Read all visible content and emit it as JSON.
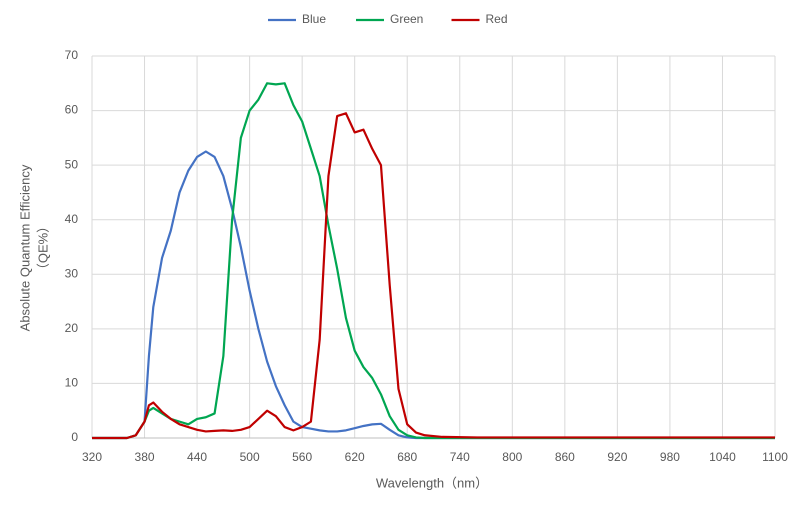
{
  "chart_data": {
    "type": "line",
    "xlabel": "Wavelength（nm）",
    "ylabel": [
      "Absolute Quantum Efficiency",
      "（QE%）"
    ],
    "x": [
      320,
      340,
      360,
      370,
      380,
      385,
      390,
      400,
      410,
      420,
      430,
      440,
      450,
      460,
      470,
      480,
      490,
      500,
      510,
      520,
      530,
      540,
      550,
      560,
      570,
      580,
      590,
      600,
      610,
      620,
      630,
      640,
      650,
      660,
      670,
      680,
      690,
      700,
      720,
      760,
      800,
      900,
      1000,
      1100
    ],
    "series": [
      {
        "name": "Blue",
        "color": "#4472c4",
        "values": [
          0,
          0,
          0,
          0.5,
          3,
          15,
          24,
          33,
          38,
          45,
          49,
          51.5,
          52.5,
          51.5,
          48,
          42,
          35,
          27,
          20,
          14,
          9.5,
          6,
          3,
          2,
          1.7,
          1.4,
          1.2,
          1.2,
          1.4,
          1.8,
          2.2,
          2.5,
          2.6,
          1.5,
          0.5,
          0.1,
          0,
          0,
          0,
          0,
          0,
          0,
          0,
          0
        ]
      },
      {
        "name": "Green",
        "color": "#00a651",
        "values": [
          0,
          0,
          0,
          0.5,
          3,
          5,
          5.5,
          4.5,
          3.5,
          3,
          2.5,
          3.5,
          3.8,
          4.5,
          15,
          40,
          55,
          60,
          62,
          65,
          64.8,
          65,
          61,
          58,
          53,
          48,
          39,
          31,
          22,
          16,
          13,
          11,
          8,
          4,
          1.5,
          0.5,
          0.1,
          0,
          0,
          0,
          0,
          0,
          0,
          0
        ]
      },
      {
        "name": "Red",
        "color": "#c00000",
        "values": [
          0,
          0,
          0,
          0.5,
          3,
          6,
          6.5,
          4.8,
          3.5,
          2.5,
          2,
          1.5,
          1.2,
          1.3,
          1.4,
          1.3,
          1.5,
          2,
          3.5,
          5,
          4,
          2,
          1.4,
          2,
          3,
          18,
          48,
          59,
          59.5,
          56,
          56.5,
          53,
          50,
          28,
          9,
          2.5,
          1,
          0.5,
          0.2,
          0.1,
          0.1,
          0.1,
          0.1,
          0.1
        ]
      }
    ],
    "xlim": [
      320,
      1100
    ],
    "xticks": [
      320,
      380,
      440,
      500,
      560,
      620,
      680,
      740,
      800,
      860,
      920,
      980,
      1040,
      1100
    ],
    "ylim": [
      0,
      70
    ],
    "yticks": [
      0,
      10,
      20,
      30,
      40,
      50,
      60,
      70
    ],
    "grid": true,
    "legend": "top"
  }
}
